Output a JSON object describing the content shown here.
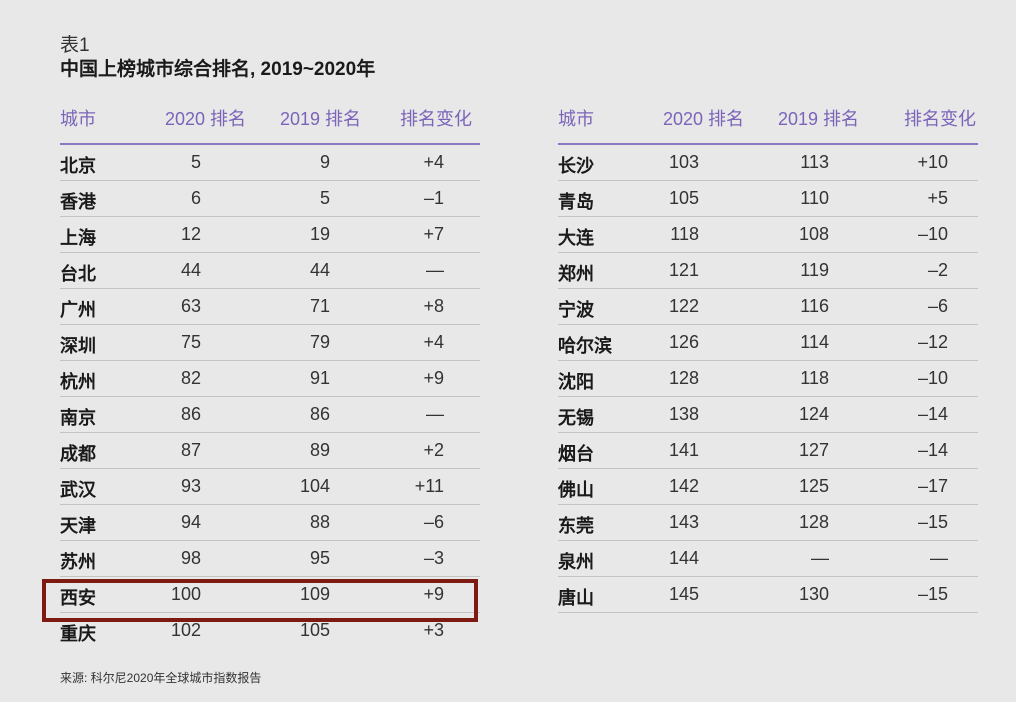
{
  "table_label": "表1",
  "title": "中国上榜城市综合排名, 2019~2020年",
  "headers": [
    "城市",
    "2020 排名",
    "2019 排名",
    "排名变化"
  ],
  "left_rows": [
    [
      "北京",
      "5",
      "9",
      "+4"
    ],
    [
      "香港",
      "6",
      "5",
      "–1"
    ],
    [
      "上海",
      "12",
      "19",
      "+7"
    ],
    [
      "台北",
      "44",
      "44",
      "—"
    ],
    [
      "广州",
      "63",
      "71",
      "+8"
    ],
    [
      "深圳",
      "75",
      "79",
      "+4"
    ],
    [
      "杭州",
      "82",
      "91",
      "+9"
    ],
    [
      "南京",
      "86",
      "86",
      "—"
    ],
    [
      "成都",
      "87",
      "89",
      "+2"
    ],
    [
      "武汉",
      "93",
      "104",
      "+11"
    ],
    [
      "天津",
      "94",
      "88",
      "–6"
    ],
    [
      "苏州",
      "98",
      "95",
      "–3"
    ],
    [
      "西安",
      "100",
      "109",
      "+9"
    ],
    [
      "重庆",
      "102",
      "105",
      "+3"
    ]
  ],
  "right_rows": [
    [
      "长沙",
      "103",
      "113",
      "+10"
    ],
    [
      "青岛",
      "105",
      "110",
      "+5"
    ],
    [
      "大连",
      "118",
      "108",
      "–10"
    ],
    [
      "郑州",
      "121",
      "119",
      "–2"
    ],
    [
      "宁波",
      "122",
      "116",
      "–6"
    ],
    [
      "哈尔滨",
      "126",
      "114",
      "–12"
    ],
    [
      "沈阳",
      "128",
      "118",
      "–10"
    ],
    [
      "无锡",
      "138",
      "124",
      "–14"
    ],
    [
      "烟台",
      "141",
      "127",
      "–14"
    ],
    [
      "佛山",
      "142",
      "125",
      "–17"
    ],
    [
      "东莞",
      "143",
      "128",
      "–15"
    ],
    [
      "泉州",
      "144",
      "—",
      "—"
    ],
    [
      "唐山",
      "145",
      "130",
      "–15"
    ]
  ],
  "highlighted_city": "西安",
  "colors": {
    "header": "#7b64b9",
    "highlight_border": "#7d1a12",
    "background": "#e8e8e8"
  },
  "source": "来源: 科尔尼2020年全球城市指数报告"
}
